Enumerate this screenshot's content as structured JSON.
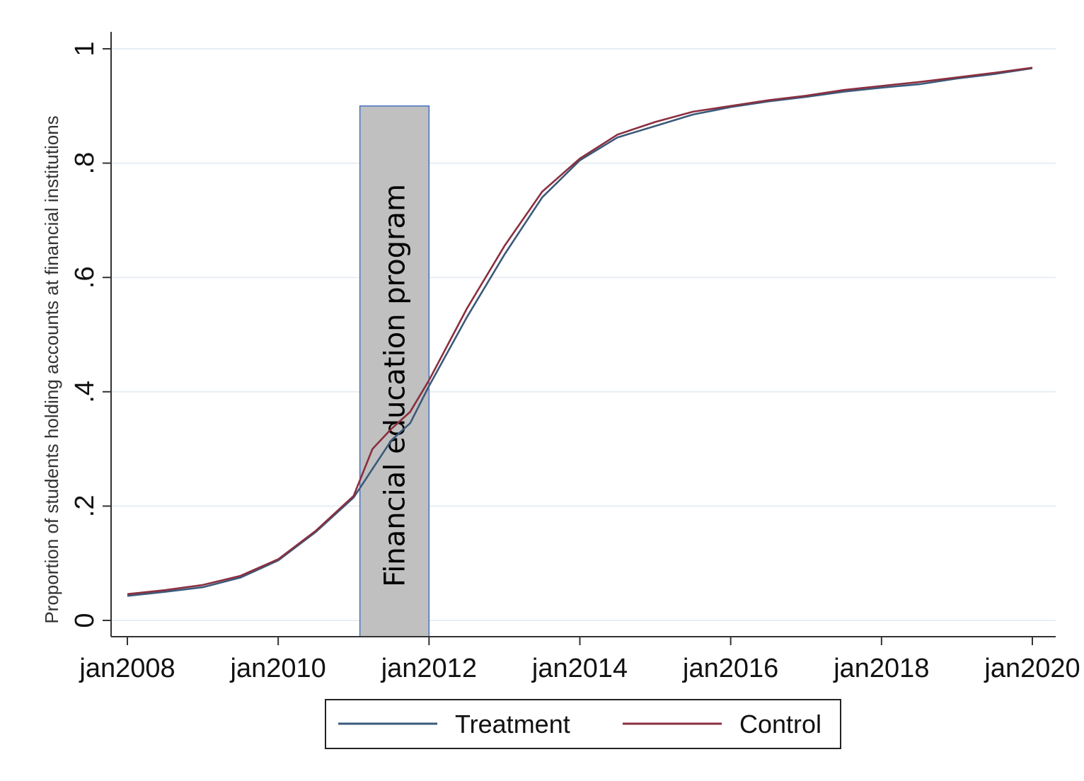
{
  "chart_data": {
    "type": "line",
    "title": "",
    "xlabel": "",
    "ylabel": "Proportion of students holding accounts at financial institutions",
    "x_ticks": [
      "jan2008",
      "jan2010",
      "jan2012",
      "jan2014",
      "jan2016",
      "jan2018",
      "jan2020"
    ],
    "y_ticks": [
      "0",
      ".2",
      ".4",
      ".6",
      ".8",
      "1"
    ],
    "xlim": [
      "2008-01",
      "2020-01"
    ],
    "ylim": [
      0,
      1
    ],
    "grid": true,
    "legend_position": "bottom",
    "x": [
      "2008-01",
      "2008-07",
      "2009-01",
      "2009-07",
      "2010-01",
      "2010-07",
      "2011-01",
      "2011-04",
      "2011-07",
      "2011-10",
      "2012-01",
      "2012-07",
      "2013-01",
      "2013-07",
      "2014-01",
      "2014-07",
      "2015-01",
      "2015-07",
      "2016-01",
      "2016-07",
      "2017-01",
      "2017-07",
      "2018-01",
      "2018-07",
      "2019-01",
      "2019-07",
      "2020-01"
    ],
    "series": [
      {
        "name": "Treatment",
        "color": "#3a5a7a",
        "values": [
          0.043,
          0.05,
          0.058,
          0.075,
          0.105,
          0.155,
          0.215,
          0.265,
          0.315,
          0.345,
          0.41,
          0.53,
          0.64,
          0.74,
          0.805,
          0.845,
          0.865,
          0.885,
          0.898,
          0.908,
          0.916,
          0.925,
          0.932,
          0.938,
          0.948,
          0.956,
          0.966
        ]
      },
      {
        "name": "Control",
        "color": "#8b2f3f",
        "values": [
          0.046,
          0.053,
          0.062,
          0.078,
          0.107,
          0.157,
          0.218,
          0.3,
          0.335,
          0.365,
          0.42,
          0.545,
          0.655,
          0.75,
          0.808,
          0.85,
          0.872,
          0.89,
          0.9,
          0.91,
          0.918,
          0.928,
          0.935,
          0.942,
          0.95,
          0.958,
          0.967
        ]
      }
    ],
    "annotation": {
      "text": "Financial education program",
      "x_start": "2011-02",
      "x_end": "2012-01",
      "y_top": 0.9,
      "fill": "#c0c0c0",
      "border": "#4472c4"
    }
  }
}
